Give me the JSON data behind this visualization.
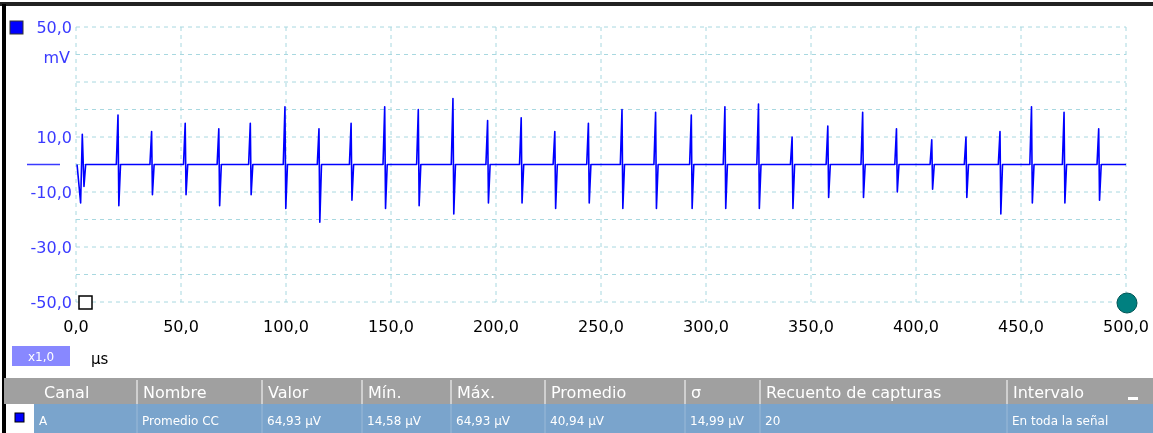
{
  "chart_data": [
    {
      "type": "line",
      "ylabel": "mV",
      "xlabel": "µs",
      "annotations": [
        "x1,0"
      ],
      "grid": true,
      "line_style": "solid",
      "marker": "none",
      "xlim": [
        0,
        500
      ],
      "xticks": [
        {
          "value": 0,
          "label": "0,0"
        },
        {
          "value": 50,
          "label": "50,0"
        },
        {
          "value": 100,
          "label": "100,0"
        },
        {
          "value": 150,
          "label": "150,0"
        },
        {
          "value": 200,
          "label": "200,0"
        },
        {
          "value": 250,
          "label": "250,0"
        },
        {
          "value": 300,
          "label": "300,0"
        },
        {
          "value": 350,
          "label": "350,0"
        },
        {
          "value": 400,
          "label": "400,0"
        },
        {
          "value": 450,
          "label": "450,0"
        },
        {
          "value": 500,
          "label": "500,0"
        }
      ],
      "ylim": [
        -50,
        50
      ],
      "yticks": [
        {
          "value": -50,
          "label": "-50,0"
        },
        {
          "value": -40,
          "label": null
        },
        {
          "value": -30,
          "label": "-30,0"
        },
        {
          "value": -20,
          "label": null
        },
        {
          "value": -10,
          "label": "-10,0"
        },
        {
          "value": 0,
          "label": null
        },
        {
          "value": 10,
          "label": "10,0"
        },
        {
          "value": 20,
          "label": null
        },
        {
          "value": 30,
          "label": null
        },
        {
          "value": 40,
          "label": null
        },
        {
          "value": 50,
          "label": "50,0"
        }
      ],
      "series": [
        {
          "color": "#0000ff",
          "x": [
            0.5,
            2.2,
            3,
            3.8,
            4.6,
            19.2,
            20,
            20.4,
            21.2,
            35.2,
            36,
            36.4,
            37.2,
            51.2,
            52,
            52.4,
            53.2,
            67.2,
            68,
            68.4,
            69.2,
            82.2,
            83,
            83.4,
            84.2,
            98.7,
            99.5,
            99.9,
            100.7,
            114.9,
            115.7,
            116.1,
            116.9,
            130.2,
            131,
            131.4,
            132.2,
            146.2,
            147,
            147.4,
            148.2,
            162.2,
            163,
            163.4,
            164.2,
            178.7,
            179.5,
            179.9,
            180.7,
            195.2,
            196,
            196.4,
            197.2,
            211.2,
            212,
            212.4,
            213.2,
            227.2,
            228,
            228.4,
            229.2,
            243.2,
            244,
            244.4,
            245.2,
            259.2,
            260,
            260.4,
            261.2,
            275.2,
            276,
            276.4,
            277.2,
            292.2,
            293,
            293.4,
            294.2,
            308.2,
            309,
            309.4,
            310.2,
            324.2,
            325,
            325.4,
            326.2,
            340.2,
            341,
            341.4,
            342.2,
            357.2,
            358,
            358.4,
            359.2,
            373.8,
            374.6,
            375,
            375.8,
            389.9,
            390.7,
            391.1,
            391.9,
            406.7,
            407.5,
            407.9,
            408.7,
            423,
            423.8,
            424.2,
            425,
            439.2,
            440,
            440.4,
            441.2,
            454.2,
            455,
            455.4,
            456.2,
            469.7,
            470.5,
            470.9,
            471.7,
            486.2,
            487,
            487.4,
            488.2,
            500
          ],
          "values": [
            0,
            -14,
            11,
            -8,
            0,
            0,
            18,
            -15,
            0,
            0,
            12,
            -11,
            0,
            0,
            15,
            -11,
            0,
            0,
            13,
            -15,
            0,
            0,
            15,
            -11,
            0,
            0,
            21,
            -16,
            0,
            0,
            13,
            -21,
            0,
            0,
            15,
            -13,
            0,
            0,
            21,
            -16,
            0,
            0,
            20,
            -15,
            0,
            0,
            24,
            -18,
            0,
            0,
            16,
            -14,
            0,
            0,
            17,
            -14,
            0,
            0,
            12,
            -16,
            0,
            0,
            15,
            -14,
            0,
            0,
            20,
            -16,
            0,
            0,
            19,
            -16,
            0,
            0,
            18,
            -16,
            0,
            0,
            21,
            -16,
            0,
            0,
            22,
            -16,
            0,
            0,
            10,
            -16,
            0,
            0,
            14,
            -12,
            0,
            0,
            19,
            -12,
            0,
            0,
            13,
            -10,
            0,
            0,
            9,
            -9,
            0,
            0,
            10,
            -12,
            0,
            0,
            12,
            -18,
            0,
            0,
            21,
            -14,
            0,
            0,
            19,
            -14,
            0,
            0,
            13,
            -13,
            0,
            0
          ]
        }
      ]
    },
    {
      "type": "other",
      "categories": [
        "Canal",
        "Nombre",
        "Valor",
        "Mín.",
        "Máx.",
        "Promedio",
        "σ",
        "Recuento de capturas",
        "Intervalo"
      ],
      "annotations": [
        "A",
        "Promedio CC",
        "64,93 µV",
        "14,58 µV",
        "64,93 µV",
        "40,94 µV",
        "14,99 µV",
        "20",
        "En toda la señal"
      ]
    }
  ]
}
